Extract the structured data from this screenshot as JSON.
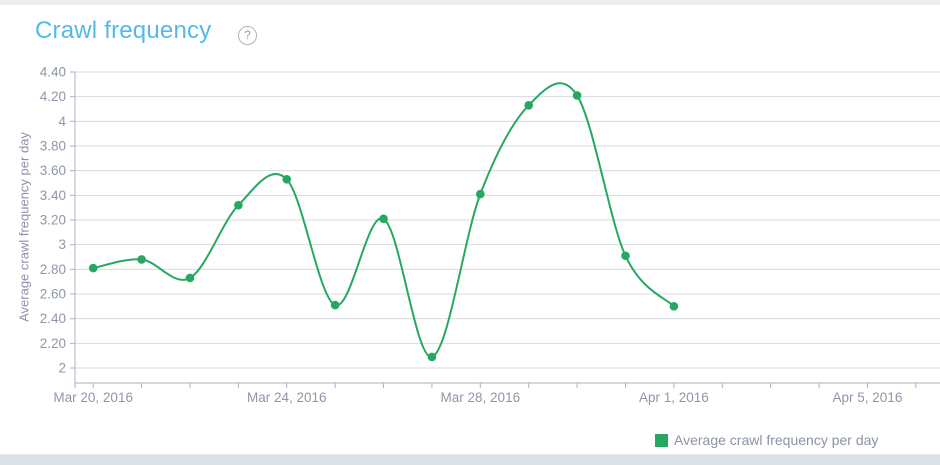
{
  "header": {
    "title": "Crawl frequency",
    "help_label": "?"
  },
  "chart_data": {
    "type": "line",
    "line_shape": "spline",
    "title": "Crawl frequency",
    "xlabel": "",
    "ylabel": "Average crawl frequency per day",
    "x": [
      "Mar 20, 2016",
      "Mar 21, 2016",
      "Mar 22, 2016",
      "Mar 23, 2016",
      "Mar 24, 2016",
      "Mar 25, 2016",
      "Mar 26, 2016",
      "Mar 27, 2016",
      "Mar 28, 2016",
      "Mar 29, 2016",
      "Mar 30, 2016",
      "Mar 31, 2016",
      "Apr 1, 2016"
    ],
    "series": [
      {
        "name": "Average crawl frequency per day",
        "color": "#27a862",
        "values": [
          2.81,
          2.88,
          2.73,
          3.32,
          3.53,
          2.51,
          3.21,
          2.09,
          3.41,
          4.13,
          4.21,
          2.91,
          2.5
        ]
      }
    ],
    "ylim": [
      2,
      4.4
    ],
    "ytick_step": 0.2,
    "ytick_labels": [
      "4.40",
      "4.20",
      "4",
      "3.80",
      "3.60",
      "3.40",
      "3.20",
      "3",
      "2.80",
      "2.60",
      "2.40",
      "2.20",
      "2"
    ],
    "xtick_major": [
      {
        "day_index": 0,
        "label": "Mar 20, 2016"
      },
      {
        "day_index": 4,
        "label": "Mar 24, 2016"
      },
      {
        "day_index": 8,
        "label": "Mar 28, 2016"
      },
      {
        "day_index": 12,
        "label": "Apr 1, 2016"
      },
      {
        "day_index": 16,
        "label": "Apr 5, 2016"
      }
    ],
    "xtick_minor_count": 18,
    "grid": true,
    "legend": {
      "position": "bottom-right",
      "items": [
        {
          "label": "Average crawl frequency per day",
          "color": "#27a862"
        }
      ]
    }
  },
  "colors": {
    "title": "#54b9e8",
    "series_green": "#27a862",
    "grid": "#d7dbe3",
    "axis": "#a9b2c2",
    "tick_text": "#8d97aa",
    "axis_title_text": "#8f92ab",
    "legend_text": "#8a92a5",
    "top_band": "#eceef2",
    "bottom_band": "#dce0e7",
    "help_icon": "#9c9c9c"
  }
}
